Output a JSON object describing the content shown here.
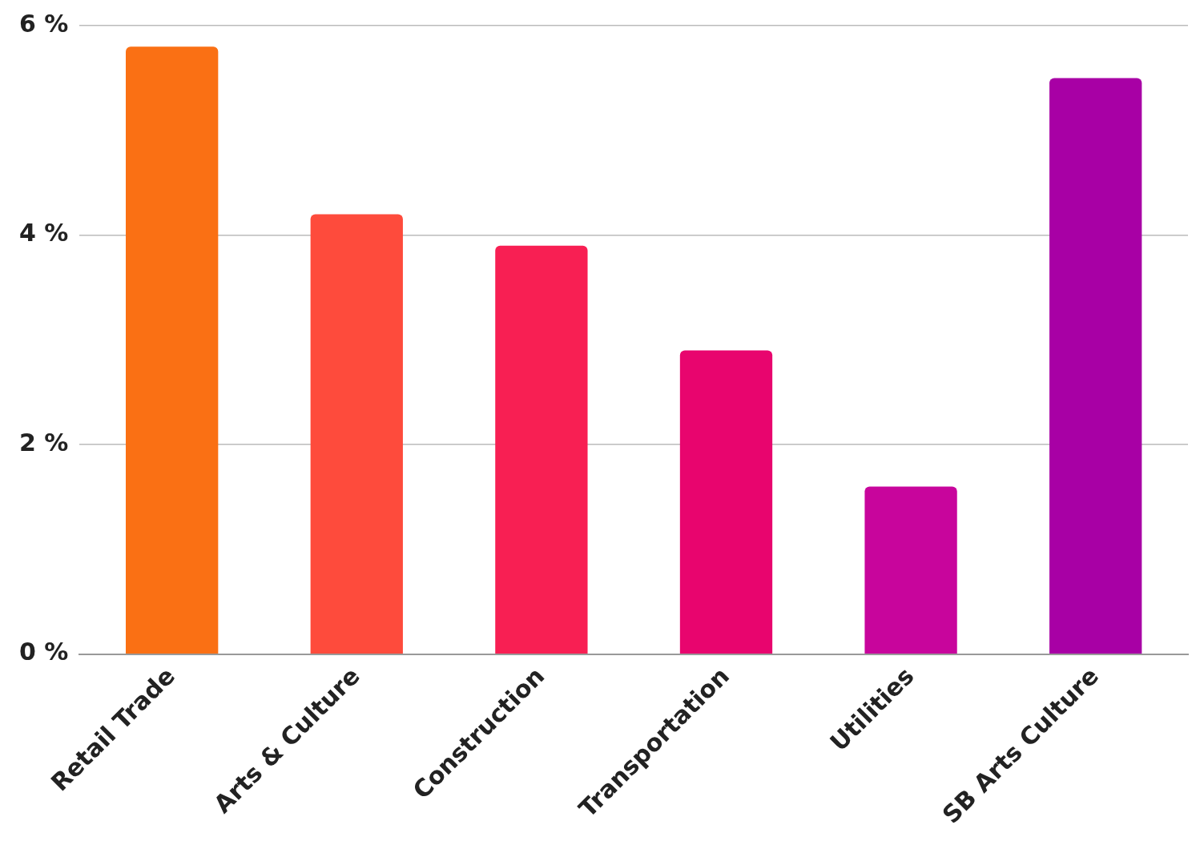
{
  "chart_data": {
    "type": "bar",
    "categories": [
      "Retail Trade",
      "Arts & Culture",
      "Construction",
      "Transportation",
      "Utilities",
      "SB Arts Culture"
    ],
    "values": [
      5.8,
      4.2,
      3.9,
      2.9,
      1.6,
      5.5
    ],
    "colors": [
      "#fa7014",
      "#fe4b3c",
      "#f81f53",
      "#e8056e",
      "#c8059c",
      "#a800a5"
    ],
    "ylim": [
      0,
      6
    ],
    "yticks": [
      {
        "value": 0,
        "label": "0 %"
      },
      {
        "value": 2,
        "label": "2 %"
      },
      {
        "value": 4,
        "label": "4 %"
      },
      {
        "value": 6,
        "label": "6 %"
      }
    ],
    "grid": true
  }
}
